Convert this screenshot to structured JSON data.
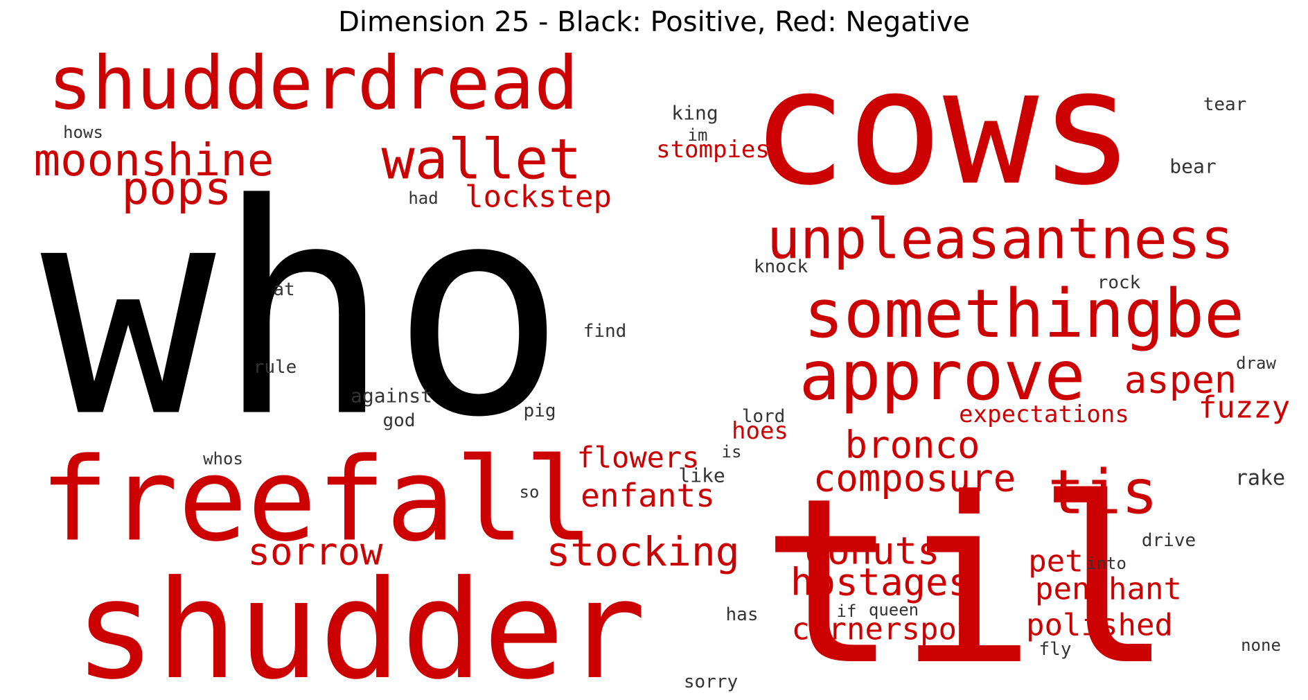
{
  "title": "Dimension 25 - Black: Positive, Red: Negative",
  "colors": {
    "positive": "#000000",
    "negative": "#cc0000",
    "small": "#333333"
  },
  "words": [
    {
      "text": "who",
      "polarity": "positive"
    },
    {
      "text": "cows",
      "polarity": "negative"
    },
    {
      "text": "shudderdread",
      "polarity": "negative"
    },
    {
      "text": "moonshine",
      "polarity": "negative"
    },
    {
      "text": "wallet",
      "polarity": "negative"
    },
    {
      "text": "pops",
      "polarity": "negative"
    },
    {
      "text": "lockstep",
      "polarity": "negative"
    },
    {
      "text": "stompies",
      "polarity": "negative"
    },
    {
      "text": "unpleasantness",
      "polarity": "negative"
    },
    {
      "text": "somethingbe",
      "polarity": "negative"
    },
    {
      "text": "approve",
      "polarity": "negative"
    },
    {
      "text": "aspen",
      "polarity": "negative"
    },
    {
      "text": "fuzzy",
      "polarity": "negative"
    },
    {
      "text": "expectations",
      "polarity": "negative"
    },
    {
      "text": "bronco",
      "polarity": "negative"
    },
    {
      "text": "composure",
      "polarity": "negative"
    },
    {
      "text": "tis",
      "polarity": "negative"
    },
    {
      "text": "til",
      "polarity": "negative"
    },
    {
      "text": "freefall",
      "polarity": "negative"
    },
    {
      "text": "shudder",
      "polarity": "negative"
    },
    {
      "text": "sorrow",
      "polarity": "negative"
    },
    {
      "text": "stocking",
      "polarity": "negative"
    },
    {
      "text": "flowers",
      "polarity": "negative"
    },
    {
      "text": "enfants",
      "polarity": "negative"
    },
    {
      "text": "hoes",
      "polarity": "negative"
    },
    {
      "text": "donuts",
      "polarity": "negative"
    },
    {
      "text": "hostages",
      "polarity": "negative"
    },
    {
      "text": "cornerspot",
      "polarity": "negative"
    },
    {
      "text": "pet",
      "polarity": "negative"
    },
    {
      "text": "penchant",
      "polarity": "negative"
    },
    {
      "text": "polished",
      "polarity": "negative"
    },
    {
      "text": "king",
      "polarity": "positive"
    },
    {
      "text": "im",
      "polarity": "positive"
    },
    {
      "text": "tear",
      "polarity": "positive"
    },
    {
      "text": "bear",
      "polarity": "positive"
    },
    {
      "text": "hows",
      "polarity": "positive"
    },
    {
      "text": "had",
      "polarity": "positive"
    },
    {
      "text": "knock",
      "polarity": "positive"
    },
    {
      "text": "rock",
      "polarity": "positive"
    },
    {
      "text": "at",
      "polarity": "positive"
    },
    {
      "text": "find",
      "polarity": "positive"
    },
    {
      "text": "rule",
      "polarity": "positive"
    },
    {
      "text": "draw",
      "polarity": "positive"
    },
    {
      "text": "against",
      "polarity": "positive"
    },
    {
      "text": "god",
      "polarity": "positive"
    },
    {
      "text": "pig",
      "polarity": "positive"
    },
    {
      "text": "lord",
      "polarity": "positive"
    },
    {
      "text": "is",
      "polarity": "positive"
    },
    {
      "text": "whos",
      "polarity": "positive"
    },
    {
      "text": "like",
      "polarity": "positive"
    },
    {
      "text": "so",
      "polarity": "positive"
    },
    {
      "text": "rake",
      "polarity": "positive"
    },
    {
      "text": "drive",
      "polarity": "positive"
    },
    {
      "text": "into",
      "polarity": "positive"
    },
    {
      "text": "if",
      "polarity": "positive"
    },
    {
      "text": "queen",
      "polarity": "positive"
    },
    {
      "text": "has",
      "polarity": "positive"
    },
    {
      "text": "fly",
      "polarity": "positive"
    },
    {
      "text": "none",
      "polarity": "positive"
    },
    {
      "text": "sorry",
      "polarity": "positive"
    }
  ]
}
